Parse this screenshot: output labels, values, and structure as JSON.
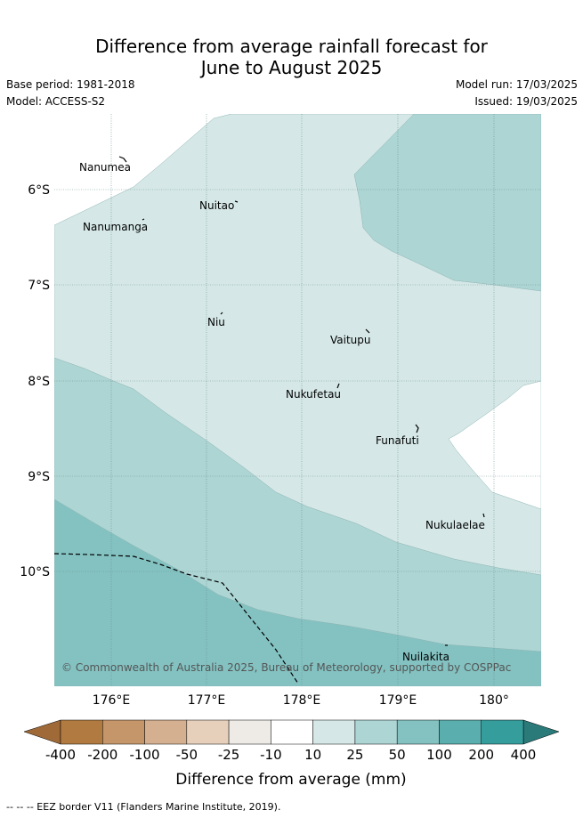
{
  "title": {
    "line1": "Difference from average rainfall forecast for",
    "line2": "June to August 2025"
  },
  "meta": {
    "base_period": "Base period: 1981-2018",
    "model": "Model: ACCESS-S2",
    "model_run": "Model run: 17/03/2025",
    "issued": "Issued: 19/03/2025"
  },
  "map": {
    "lat_labels": [
      "6°S",
      "7°S",
      "8°S",
      "9°S",
      "10°S"
    ],
    "lon_labels": [
      "176°E",
      "177°E",
      "178°E",
      "179°E",
      "180°"
    ],
    "islands": [
      "Nanumea",
      "Nuitao",
      "Nanumanga",
      "Niu",
      "Vaitupu",
      "Nukufetau",
      "Funafuti",
      "Nukulaelae",
      "Nuilakita"
    ],
    "copyright": "© Commonwealth of Australia 2025, Bureau of Meteorology, supported by COSPPac"
  },
  "legend": {
    "tick_labels": [
      "-400",
      "-200",
      "-100",
      "-50",
      "-25",
      "-10",
      "10",
      "25",
      "50",
      "100",
      "200",
      "400"
    ],
    "colors": [
      "#b07a40",
      "#c4966a",
      "#d4b090",
      "#e6d0bc",
      "#eeeae6",
      "#ffffff",
      "#d5e8e7",
      "#acd5d4",
      "#83c2c1",
      "#5aaeae",
      "#359e9c"
    ],
    "under_color": "#a06a38",
    "over_color": "#2a7a7a",
    "label": "Difference from average (mm)"
  },
  "footer": "-- -- -- EEZ border V11 (Flanders Marine Institute, 2019)."
}
